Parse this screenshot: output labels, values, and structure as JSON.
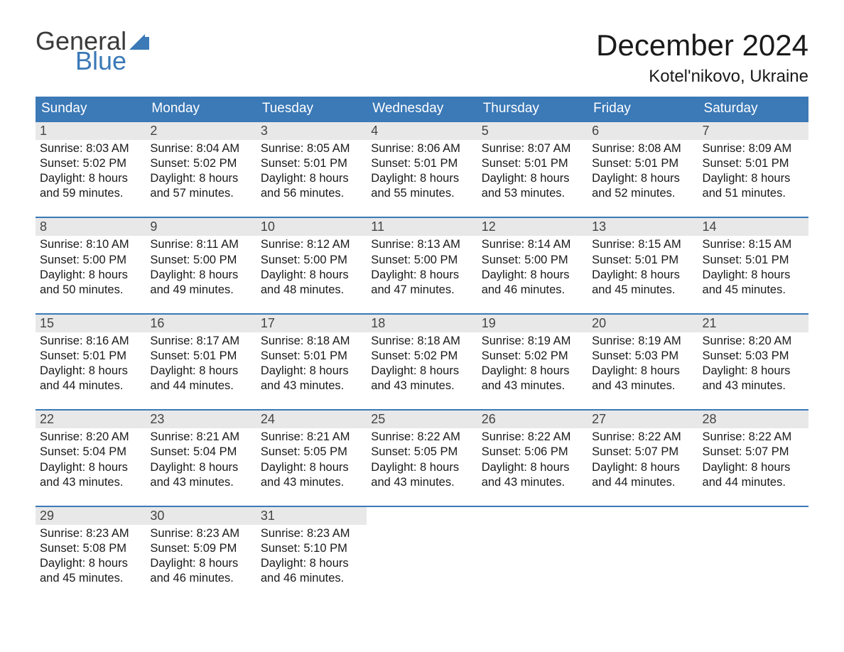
{
  "colors": {
    "header_blue": "#3b79b7",
    "row_top_border": "#3b79b7",
    "daynum_bg": "#e8e8e8",
    "background": "#ffffff",
    "text": "#1a1a1a",
    "logo_gray": "#3a3a3a",
    "logo_blue": "#3b79b7"
  },
  "typography": {
    "title_fontsize": 42,
    "location_fontsize": 24,
    "dow_fontsize": 19,
    "daynum_fontsize": 18,
    "body_fontsize": 16.5,
    "logo_fontsize": 36,
    "font_family": "Arial"
  },
  "logo": {
    "top": "General",
    "bottom": "Blue"
  },
  "title": "December 2024",
  "location": "Kotel'nikovo, Ukraine",
  "structure": {
    "type": "calendar",
    "columns": 7,
    "rows": 5,
    "first_day_col": 0,
    "days_in_month": 31
  },
  "dow": [
    "Sunday",
    "Monday",
    "Tuesday",
    "Wednesday",
    "Thursday",
    "Friday",
    "Saturday"
  ],
  "days": [
    {
      "n": "1",
      "sunrise": "Sunrise: 8:03 AM",
      "sunset": "Sunset: 5:02 PM",
      "dl1": "Daylight: 8 hours",
      "dl2": "and 59 minutes."
    },
    {
      "n": "2",
      "sunrise": "Sunrise: 8:04 AM",
      "sunset": "Sunset: 5:02 PM",
      "dl1": "Daylight: 8 hours",
      "dl2": "and 57 minutes."
    },
    {
      "n": "3",
      "sunrise": "Sunrise: 8:05 AM",
      "sunset": "Sunset: 5:01 PM",
      "dl1": "Daylight: 8 hours",
      "dl2": "and 56 minutes."
    },
    {
      "n": "4",
      "sunrise": "Sunrise: 8:06 AM",
      "sunset": "Sunset: 5:01 PM",
      "dl1": "Daylight: 8 hours",
      "dl2": "and 55 minutes."
    },
    {
      "n": "5",
      "sunrise": "Sunrise: 8:07 AM",
      "sunset": "Sunset: 5:01 PM",
      "dl1": "Daylight: 8 hours",
      "dl2": "and 53 minutes."
    },
    {
      "n": "6",
      "sunrise": "Sunrise: 8:08 AM",
      "sunset": "Sunset: 5:01 PM",
      "dl1": "Daylight: 8 hours",
      "dl2": "and 52 minutes."
    },
    {
      "n": "7",
      "sunrise": "Sunrise: 8:09 AM",
      "sunset": "Sunset: 5:01 PM",
      "dl1": "Daylight: 8 hours",
      "dl2": "and 51 minutes."
    },
    {
      "n": "8",
      "sunrise": "Sunrise: 8:10 AM",
      "sunset": "Sunset: 5:00 PM",
      "dl1": "Daylight: 8 hours",
      "dl2": "and 50 minutes."
    },
    {
      "n": "9",
      "sunrise": "Sunrise: 8:11 AM",
      "sunset": "Sunset: 5:00 PM",
      "dl1": "Daylight: 8 hours",
      "dl2": "and 49 minutes."
    },
    {
      "n": "10",
      "sunrise": "Sunrise: 8:12 AM",
      "sunset": "Sunset: 5:00 PM",
      "dl1": "Daylight: 8 hours",
      "dl2": "and 48 minutes."
    },
    {
      "n": "11",
      "sunrise": "Sunrise: 8:13 AM",
      "sunset": "Sunset: 5:00 PM",
      "dl1": "Daylight: 8 hours",
      "dl2": "and 47 minutes."
    },
    {
      "n": "12",
      "sunrise": "Sunrise: 8:14 AM",
      "sunset": "Sunset: 5:00 PM",
      "dl1": "Daylight: 8 hours",
      "dl2": "and 46 minutes."
    },
    {
      "n": "13",
      "sunrise": "Sunrise: 8:15 AM",
      "sunset": "Sunset: 5:01 PM",
      "dl1": "Daylight: 8 hours",
      "dl2": "and 45 minutes."
    },
    {
      "n": "14",
      "sunrise": "Sunrise: 8:15 AM",
      "sunset": "Sunset: 5:01 PM",
      "dl1": "Daylight: 8 hours",
      "dl2": "and 45 minutes."
    },
    {
      "n": "15",
      "sunrise": "Sunrise: 8:16 AM",
      "sunset": "Sunset: 5:01 PM",
      "dl1": "Daylight: 8 hours",
      "dl2": "and 44 minutes."
    },
    {
      "n": "16",
      "sunrise": "Sunrise: 8:17 AM",
      "sunset": "Sunset: 5:01 PM",
      "dl1": "Daylight: 8 hours",
      "dl2": "and 44 minutes."
    },
    {
      "n": "17",
      "sunrise": "Sunrise: 8:18 AM",
      "sunset": "Sunset: 5:01 PM",
      "dl1": "Daylight: 8 hours",
      "dl2": "and 43 minutes."
    },
    {
      "n": "18",
      "sunrise": "Sunrise: 8:18 AM",
      "sunset": "Sunset: 5:02 PM",
      "dl1": "Daylight: 8 hours",
      "dl2": "and 43 minutes."
    },
    {
      "n": "19",
      "sunrise": "Sunrise: 8:19 AM",
      "sunset": "Sunset: 5:02 PM",
      "dl1": "Daylight: 8 hours",
      "dl2": "and 43 minutes."
    },
    {
      "n": "20",
      "sunrise": "Sunrise: 8:19 AM",
      "sunset": "Sunset: 5:03 PM",
      "dl1": "Daylight: 8 hours",
      "dl2": "and 43 minutes."
    },
    {
      "n": "21",
      "sunrise": "Sunrise: 8:20 AM",
      "sunset": "Sunset: 5:03 PM",
      "dl1": "Daylight: 8 hours",
      "dl2": "and 43 minutes."
    },
    {
      "n": "22",
      "sunrise": "Sunrise: 8:20 AM",
      "sunset": "Sunset: 5:04 PM",
      "dl1": "Daylight: 8 hours",
      "dl2": "and 43 minutes."
    },
    {
      "n": "23",
      "sunrise": "Sunrise: 8:21 AM",
      "sunset": "Sunset: 5:04 PM",
      "dl1": "Daylight: 8 hours",
      "dl2": "and 43 minutes."
    },
    {
      "n": "24",
      "sunrise": "Sunrise: 8:21 AM",
      "sunset": "Sunset: 5:05 PM",
      "dl1": "Daylight: 8 hours",
      "dl2": "and 43 minutes."
    },
    {
      "n": "25",
      "sunrise": "Sunrise: 8:22 AM",
      "sunset": "Sunset: 5:05 PM",
      "dl1": "Daylight: 8 hours",
      "dl2": "and 43 minutes."
    },
    {
      "n": "26",
      "sunrise": "Sunrise: 8:22 AM",
      "sunset": "Sunset: 5:06 PM",
      "dl1": "Daylight: 8 hours",
      "dl2": "and 43 minutes."
    },
    {
      "n": "27",
      "sunrise": "Sunrise: 8:22 AM",
      "sunset": "Sunset: 5:07 PM",
      "dl1": "Daylight: 8 hours",
      "dl2": "and 44 minutes."
    },
    {
      "n": "28",
      "sunrise": "Sunrise: 8:22 AM",
      "sunset": "Sunset: 5:07 PM",
      "dl1": "Daylight: 8 hours",
      "dl2": "and 44 minutes."
    },
    {
      "n": "29",
      "sunrise": "Sunrise: 8:23 AM",
      "sunset": "Sunset: 5:08 PM",
      "dl1": "Daylight: 8 hours",
      "dl2": "and 45 minutes."
    },
    {
      "n": "30",
      "sunrise": "Sunrise: 8:23 AM",
      "sunset": "Sunset: 5:09 PM",
      "dl1": "Daylight: 8 hours",
      "dl2": "and 46 minutes."
    },
    {
      "n": "31",
      "sunrise": "Sunrise: 8:23 AM",
      "sunset": "Sunset: 5:10 PM",
      "dl1": "Daylight: 8 hours",
      "dl2": "and 46 minutes."
    }
  ]
}
